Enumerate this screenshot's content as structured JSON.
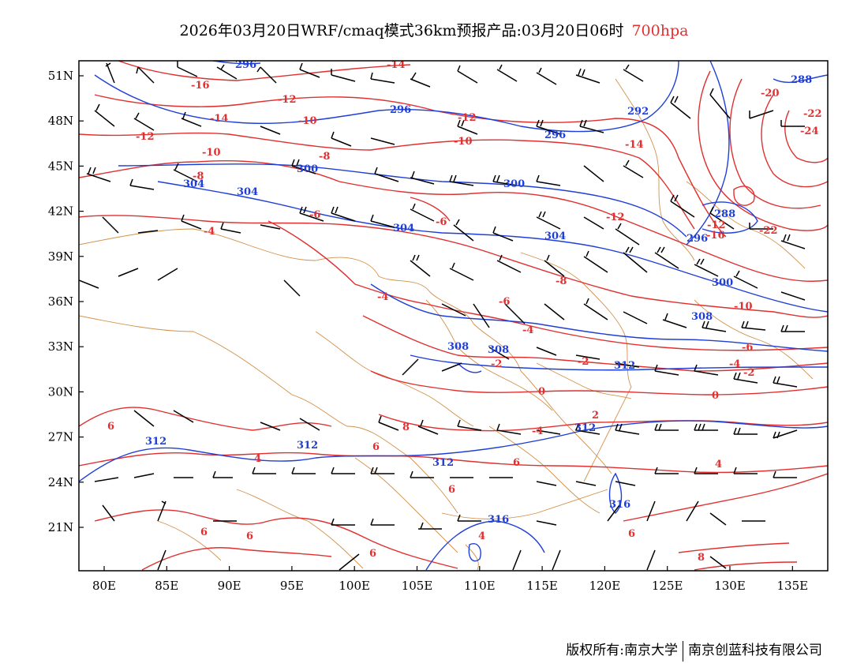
{
  "title": {
    "main": "2026年03月20日WRF/cmaq模式36km预报产品:03月20日06时",
    "level": "700hpa"
  },
  "colors": {
    "height_contour": "#1f3fd6",
    "temperature_contour": "#e03030",
    "borders": "#d2914a",
    "wind_barb": "#000000",
    "frame": "#000000"
  },
  "axes": {
    "lon_ticks": [
      "80E",
      "85E",
      "90E",
      "95E",
      "100E",
      "105E",
      "110E",
      "115E",
      "120E",
      "125E",
      "130E",
      "135E"
    ],
    "lat_ticks": [
      "51N",
      "48N",
      "45N",
      "42N",
      "39N",
      "36N",
      "33N",
      "30N",
      "27N",
      "24N",
      "21N"
    ]
  },
  "height_labels": [
    "296",
    "296",
    "292",
    "296",
    "288",
    "300",
    "304",
    "300",
    "304",
    "304",
    "296",
    "288",
    "300",
    "304",
    "308",
    "308",
    "308",
    "312",
    "312",
    "312",
    "312",
    "312",
    "316",
    "316"
  ],
  "temperature_labels": [
    "-14",
    "-16",
    "-12",
    "-14",
    "-10",
    "-12",
    "-12",
    "-10",
    "-14",
    "-20",
    "-22",
    "-24",
    "-12",
    "-10",
    "-8",
    "-8",
    "-6",
    "-6",
    "-4",
    "-12",
    "-16",
    "-22",
    "-4",
    "-8",
    "-10",
    "-6",
    "-4",
    "-2",
    "-2",
    "-6",
    "-4",
    "-2",
    "0",
    "0",
    "2",
    "-4",
    "6",
    "4",
    "6",
    "4",
    "6",
    "6",
    "8",
    "8",
    "6",
    "6",
    "6",
    "4",
    "6"
  ],
  "copyright": {
    "owner": "版权所有:南京大学",
    "company": "南京创蓝科技有限公司"
  }
}
